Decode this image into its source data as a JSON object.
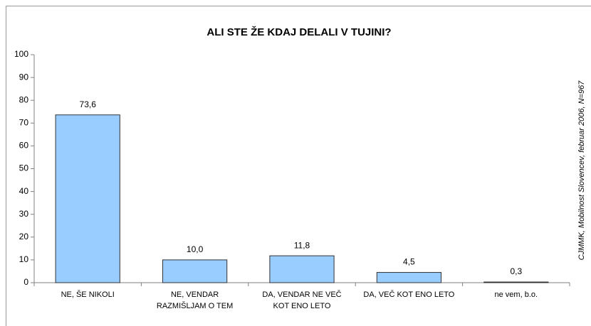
{
  "chart_data": {
    "type": "bar",
    "title": "ALI STE ŽE KDAJ DELALI V TUJINI?",
    "categories": [
      "NE, ŠE NIKOLI",
      "NE, VENDAR RAZMIŠLJAM O TEM",
      "DA, VENDAR NE VEČ KOT ENO LETO",
      "DA, VEČ KOT ENO LETO",
      "ne vem, b.o."
    ],
    "values": [
      73.6,
      10.0,
      11.8,
      4.5,
      0.3
    ],
    "value_labels": [
      "73,6",
      "10,0",
      "11,8",
      "4,5",
      "0,3"
    ],
    "color": "#99ccff",
    "ylim": [
      0,
      100
    ],
    "yticks": [
      0,
      10,
      20,
      30,
      40,
      50,
      60,
      70,
      80,
      90,
      100
    ],
    "grid": false,
    "source": "CJMMK, Mobilnost Slovencev, februar 2006, N=967"
  }
}
